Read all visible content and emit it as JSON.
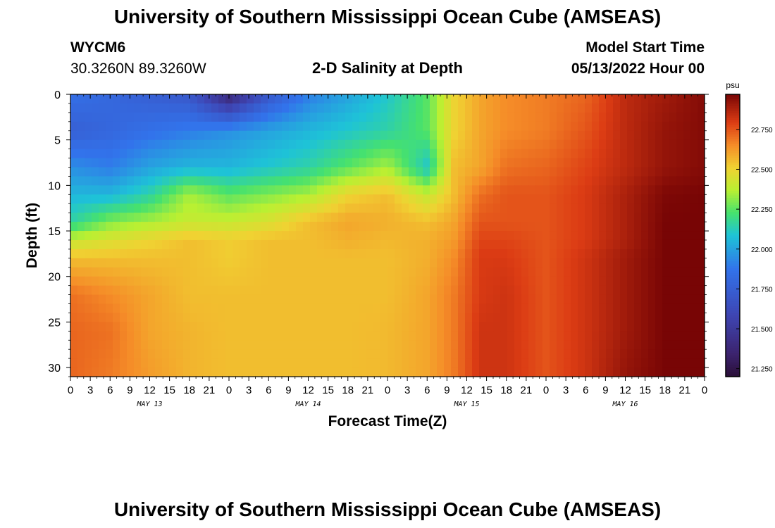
{
  "page": {
    "title": "University of Southern Mississippi Ocean Cube (AMSEAS)",
    "footer_title": "University of Southern Mississippi Ocean Cube (AMSEAS)",
    "station": "WYCM6",
    "coords": "30.3260N  89.3260W",
    "plot_title": "2-D Salinity at Depth",
    "model_start_label": "Model Start Time",
    "model_start_value": "05/13/2022 Hour 00"
  },
  "chart_data": {
    "type": "heatmap",
    "title": "2-D Salinity at Depth",
    "xlabel": "Forecast Time(Z)",
    "ylabel": "Depth (ft)",
    "colorbar_unit": "psu",
    "x_tick_labels": [
      "0",
      "3",
      "6",
      "9",
      "12",
      "15",
      "18",
      "21",
      "0",
      "3",
      "6",
      "9",
      "12",
      "15",
      "18",
      "21",
      "0",
      "3",
      "6",
      "9",
      "12",
      "15",
      "18",
      "21",
      "0",
      "3",
      "6",
      "9",
      "12",
      "15",
      "18",
      "21",
      "0"
    ],
    "day_labels": [
      "MAY 13",
      "MAY 14",
      "MAY 15",
      "MAY 16"
    ],
    "x_range_hours": [
      0,
      96
    ],
    "y_ticks": [
      0,
      5,
      10,
      15,
      20,
      25,
      30
    ],
    "y_range": [
      0,
      31
    ],
    "y_inverted": true,
    "colorbar_ticks": [
      "22.750",
      "22.500",
      "22.250",
      "22.000",
      "21.750",
      "21.500",
      "21.250"
    ],
    "colorbar_range": [
      21.2,
      22.97
    ],
    "depths": [
      0,
      4,
      8,
      11,
      14,
      16,
      18,
      22,
      26,
      31
    ],
    "hours": [
      0,
      6,
      12,
      18,
      24,
      30,
      36,
      42,
      48,
      54,
      58,
      62,
      66,
      72,
      78,
      84,
      90,
      96
    ],
    "values": [
      [
        21.85,
        21.8,
        21.75,
        21.7,
        21.35,
        21.7,
        21.9,
        22.0,
        22.1,
        22.25,
        22.5,
        22.6,
        22.65,
        22.68,
        22.72,
        22.85,
        22.9,
        22.95
      ],
      [
        21.75,
        21.8,
        21.85,
        21.9,
        21.95,
        22.0,
        22.05,
        22.1,
        22.15,
        22.25,
        22.5,
        22.6,
        22.65,
        22.68,
        22.75,
        22.85,
        22.92,
        22.95
      ],
      [
        21.95,
        21.9,
        22.0,
        22.05,
        22.05,
        22.1,
        22.15,
        22.25,
        22.35,
        22.1,
        22.55,
        22.6,
        22.7,
        22.72,
        22.78,
        22.85,
        22.92,
        22.95
      ],
      [
        22.05,
        22.05,
        22.15,
        22.35,
        22.25,
        22.3,
        22.35,
        22.5,
        22.55,
        22.4,
        22.55,
        22.7,
        22.75,
        22.75,
        22.8,
        22.88,
        22.96,
        22.97
      ],
      [
        22.15,
        22.3,
        22.35,
        22.4,
        22.4,
        22.45,
        22.55,
        22.6,
        22.58,
        22.55,
        22.6,
        22.75,
        22.75,
        22.75,
        22.8,
        22.88,
        22.97,
        22.97
      ],
      [
        22.4,
        22.45,
        22.5,
        22.55,
        22.52,
        22.55,
        22.55,
        22.58,
        22.56,
        22.58,
        22.62,
        22.78,
        22.78,
        22.75,
        22.8,
        22.88,
        22.97,
        22.97
      ],
      [
        22.55,
        22.55,
        22.55,
        22.55,
        22.52,
        22.55,
        22.55,
        22.55,
        22.55,
        22.58,
        22.65,
        22.8,
        22.8,
        22.75,
        22.82,
        22.9,
        22.97,
        22.97
      ],
      [
        22.7,
        22.65,
        22.6,
        22.55,
        22.55,
        22.55,
        22.55,
        22.55,
        22.55,
        22.6,
        22.68,
        22.8,
        22.82,
        22.75,
        22.82,
        22.9,
        22.97,
        22.97
      ],
      [
        22.72,
        22.7,
        22.6,
        22.57,
        22.55,
        22.55,
        22.55,
        22.55,
        22.56,
        22.6,
        22.68,
        22.82,
        22.82,
        22.75,
        22.82,
        22.9,
        22.97,
        22.97
      ],
      [
        22.72,
        22.68,
        22.62,
        22.57,
        22.55,
        22.55,
        22.55,
        22.55,
        22.56,
        22.6,
        22.68,
        22.82,
        22.82,
        22.75,
        22.82,
        22.92,
        22.97,
        22.97
      ]
    ]
  }
}
